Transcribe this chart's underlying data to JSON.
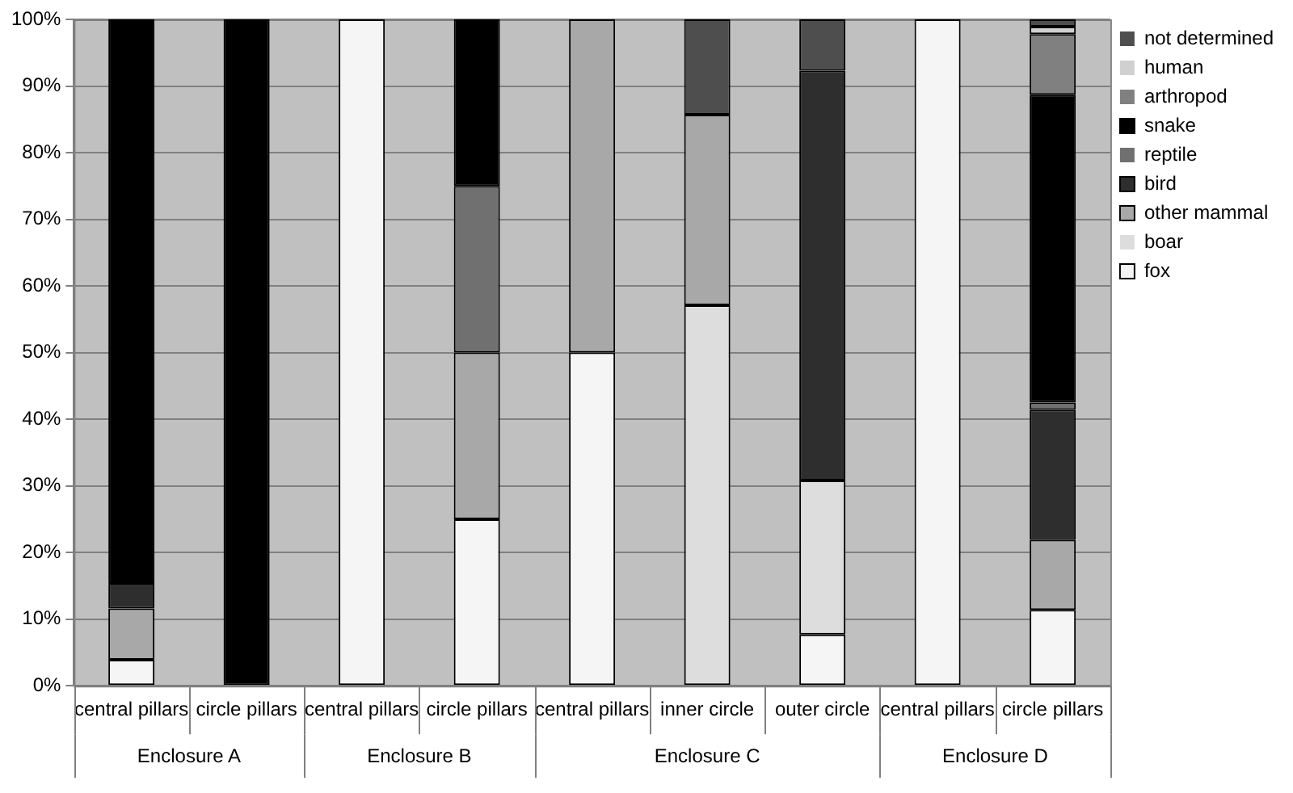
{
  "chart_data": {
    "type": "bar",
    "stacked": true,
    "categories": [
      "central pillars",
      "circle pillars",
      "central pillars",
      "circle pillars",
      "central pillars",
      "inner circle",
      "outer circle",
      "central pillars",
      "circle pillars"
    ],
    "series": [
      {
        "name": "fox",
        "color": "#f5f5f5",
        "values": [
          3.9,
          0,
          100,
          25,
          50,
          0,
          7.7,
          100,
          11.4
        ]
      },
      {
        "name": "boar",
        "color": "#dddddd",
        "values": [
          0,
          0,
          0,
          0,
          0,
          57.1,
          23.1,
          0,
          0
        ]
      },
      {
        "name": "other mammal",
        "color": "#a8a8a8",
        "values": [
          7.7,
          0,
          0,
          25,
          50,
          28.6,
          0,
          0,
          10.5
        ]
      },
      {
        "name": "bird",
        "color": "#2e2e2e",
        "values": [
          3.8,
          0,
          0,
          0,
          0,
          0,
          61.5,
          0,
          19.5
        ]
      },
      {
        "name": "reptile",
        "color": "#707070",
        "values": [
          0,
          0,
          0,
          25,
          0,
          0,
          0,
          0,
          1.1
        ]
      },
      {
        "name": "snake",
        "color": "#000000",
        "values": [
          84.6,
          100,
          0,
          25,
          0,
          0,
          0,
          0,
          46.2
        ]
      },
      {
        "name": "arthropod",
        "color": "#808080",
        "values": [
          0,
          0,
          0,
          0,
          0,
          0,
          0,
          0,
          9.1
        ]
      },
      {
        "name": "human",
        "color": "#d0d0d0",
        "values": [
          0,
          0,
          0,
          0,
          0,
          0,
          0,
          0,
          1.1
        ]
      },
      {
        "name": "not determined",
        "color": "#4e4e4e",
        "values": [
          0,
          0,
          0,
          0,
          0,
          14.3,
          7.7,
          0,
          1.1
        ]
      }
    ],
    "ylim": [
      0,
      100
    ],
    "yticks": [
      {
        "value": 0,
        "label": "0%"
      },
      {
        "value": 10,
        "label": "10%"
      },
      {
        "value": 20,
        "label": "20%"
      },
      {
        "value": 30,
        "label": "30%"
      },
      {
        "value": 40,
        "label": "40%"
      },
      {
        "value": 50,
        "label": "50%"
      },
      {
        "value": 60,
        "label": "60%"
      },
      {
        "value": 70,
        "label": "70%"
      },
      {
        "value": 80,
        "label": "80%"
      },
      {
        "value": 90,
        "label": "90%"
      },
      {
        "value": 100,
        "label": "100%"
      }
    ],
    "grid": "y",
    "legend": "right",
    "annotations": [
      "Enclosure A",
      "Enclosure B",
      "Enclosure C",
      "Enclosure D"
    ]
  }
}
